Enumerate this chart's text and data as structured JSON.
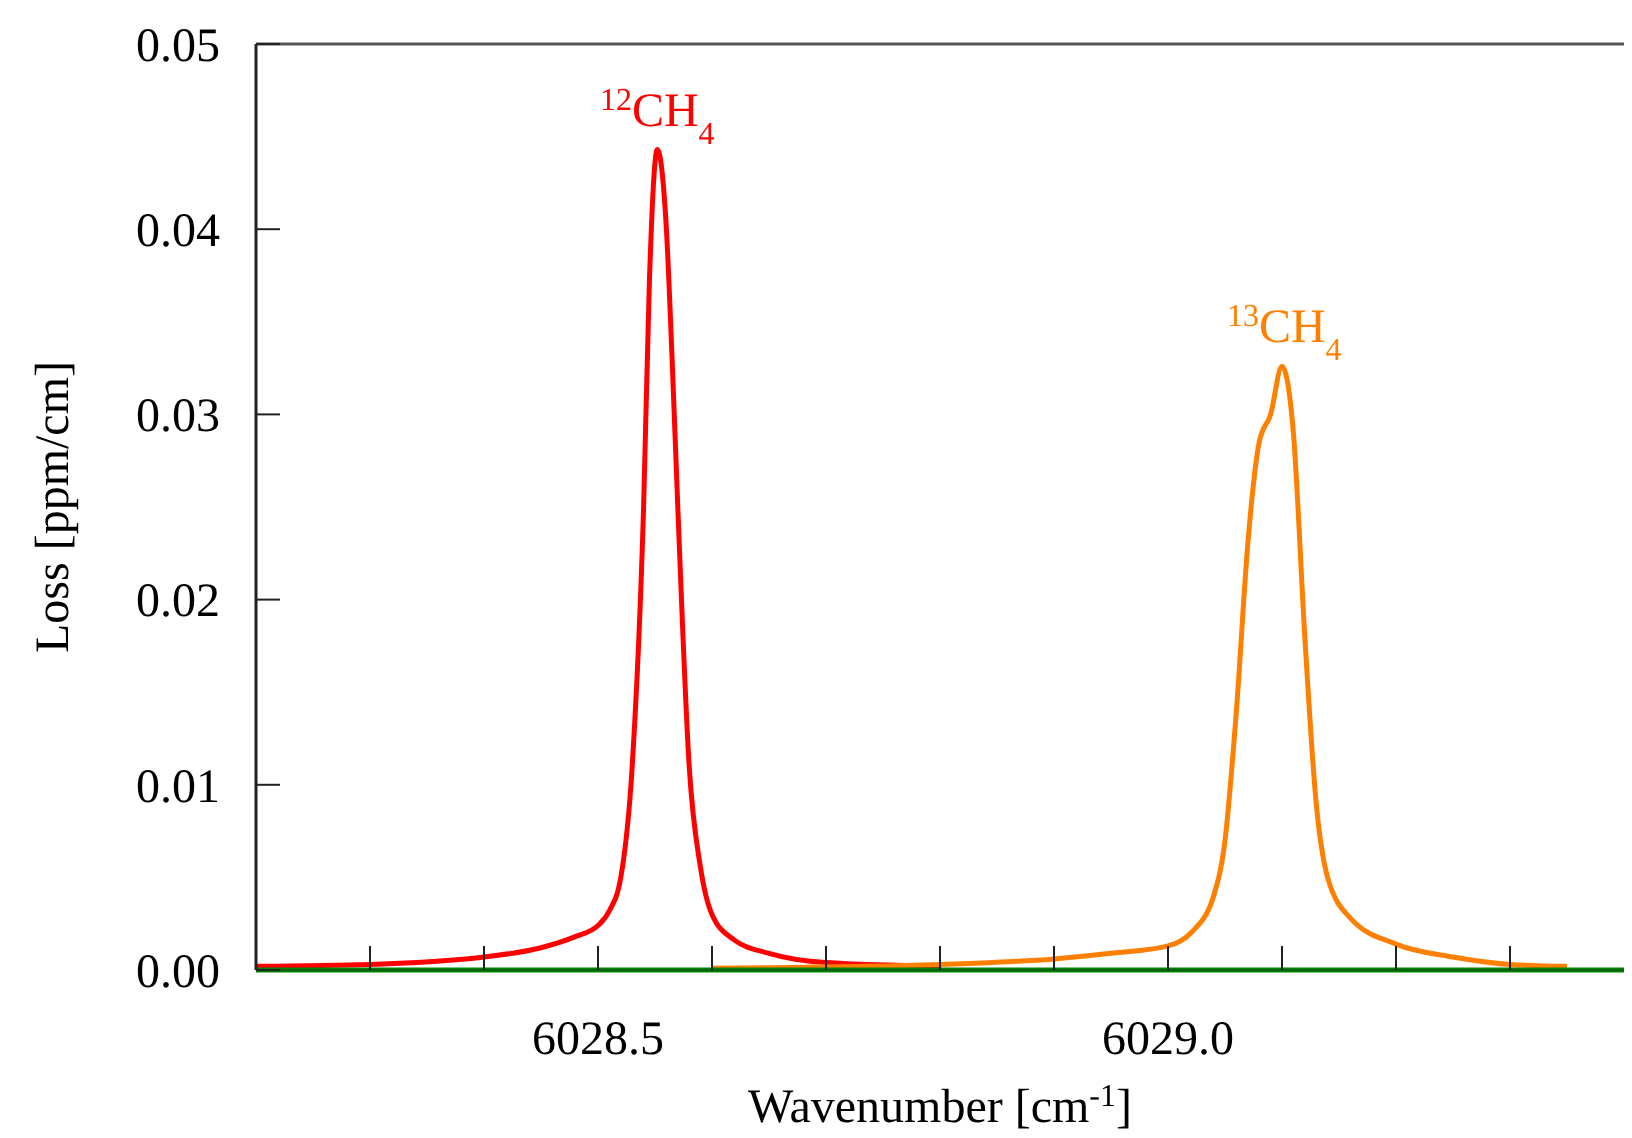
{
  "chart_data": {
    "type": "line",
    "xlabel": "Wavenumber [cm$^{-1}$]",
    "ylabel": "Loss [ppm/cm]",
    "xlim": [
      6028.2,
      6029.4
    ],
    "ylim": [
      0,
      0.05
    ],
    "xticks": [
      {
        "value": 6028.3,
        "label": null
      },
      {
        "value": 6028.4,
        "label": null
      },
      {
        "value": 6028.5,
        "label": "6028.5"
      },
      {
        "value": 6028.6,
        "label": null
      },
      {
        "value": 6028.7,
        "label": null
      },
      {
        "value": 6028.8,
        "label": null
      },
      {
        "value": 6028.9,
        "label": null
      },
      {
        "value": 6029.0,
        "label": "6029.0"
      },
      {
        "value": 6029.1,
        "label": null
      },
      {
        "value": 6029.2,
        "label": null
      },
      {
        "value": 6029.3,
        "label": null
      }
    ],
    "yticks": [
      {
        "value": 0,
        "label": "0.00"
      },
      {
        "value": 0.01,
        "label": "0.01"
      },
      {
        "value": 0.02,
        "label": "0.02"
      },
      {
        "value": 0.03,
        "label": "0.03"
      },
      {
        "value": 0.04,
        "label": "0.04"
      },
      {
        "value": 0.05,
        "label": "0.05"
      }
    ],
    "grid": false,
    "marker": "none",
    "line_style": "solid",
    "series": [
      {
        "color": "#ff0000",
        "x": [
          6028.2,
          6028.3,
          6028.4,
          6028.45,
          6028.48,
          6028.5,
          6028.51,
          6028.52,
          6028.53,
          6028.54,
          6028.545,
          6028.552,
          6028.56,
          6028.565,
          6028.57,
          6028.58,
          6028.59,
          6028.6,
          6028.62,
          6028.65,
          6028.7,
          6028.8
        ],
        "values": [
          0.0002,
          0.0003,
          0.0007,
          0.0012,
          0.0018,
          0.0024,
          0.0032,
          0.005,
          0.011,
          0.025,
          0.037,
          0.0443,
          0.04,
          0.033,
          0.025,
          0.011,
          0.0055,
          0.003,
          0.0016,
          0.0009,
          0.0004,
          0.0002
        ]
      },
      {
        "color": "#ff8000",
        "x": [
          6028.6,
          6028.8,
          6028.9,
          6028.95,
          6029.0,
          6029.02,
          6029.04,
          6029.05,
          6029.06,
          6029.07,
          6029.08,
          6029.09,
          6029.1,
          6029.11,
          6029.12,
          6029.13,
          6029.14,
          6029.16,
          6029.2,
          6029.25,
          6029.3,
          6029.35
        ],
        "values": [
          0.0001,
          0.0003,
          0.0006,
          0.0009,
          0.0013,
          0.002,
          0.004,
          0.007,
          0.014,
          0.023,
          0.0285,
          0.03,
          0.0326,
          0.029,
          0.018,
          0.009,
          0.005,
          0.0028,
          0.0014,
          0.0007,
          0.0003,
          0.0002
        ]
      },
      {
        "color": "#008000",
        "x": [
          6028.2,
          6029.4
        ],
        "values": [
          0,
          0
        ]
      }
    ],
    "annotations": [
      {
        "text": "$^{12}$CH$_{4}$",
        "x": 6028.552,
        "y": 0.0443
      },
      {
        "text": "$^{13}$CH$_{4}$",
        "x": 6029.102,
        "y": 0.0326
      }
    ]
  }
}
